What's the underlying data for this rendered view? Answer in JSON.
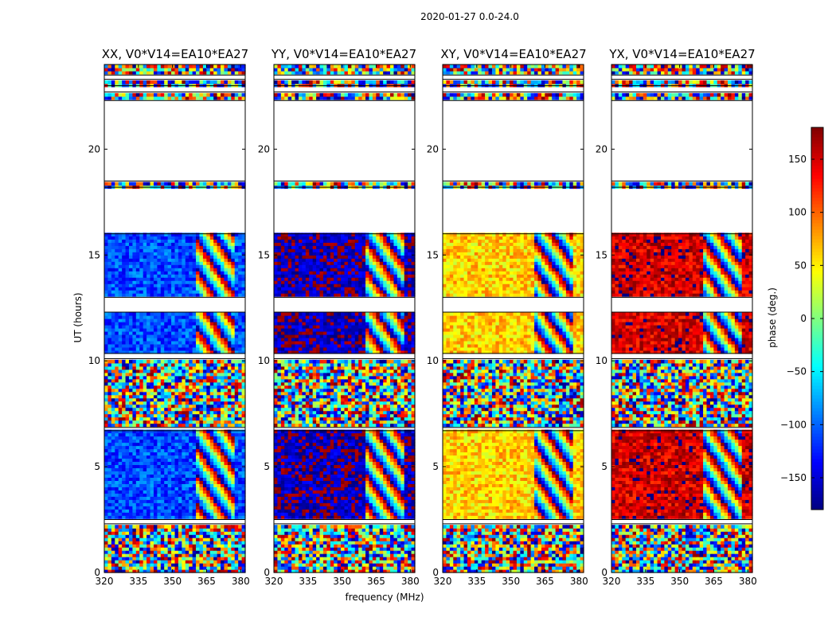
{
  "suptitle": "2020-01-27 0.0-24.0",
  "chart_data": {
    "type": "heatmap",
    "xlabel": "frequency (MHz)",
    "ylabel": "UT (hours)",
    "colorbar": {
      "label": "phase (deg.)",
      "range": [
        -180,
        180
      ],
      "ticks": [
        -150,
        -100,
        -50,
        0,
        50,
        100,
        150
      ],
      "tick_labels": [
        "−150",
        "−100",
        "−50",
        "0",
        "50",
        "100",
        "150"
      ]
    },
    "x_range": [
      320,
      382
    ],
    "x_ticks": [
      320,
      335,
      350,
      365,
      380
    ],
    "y_range": [
      0,
      24
    ],
    "y_ticks": [
      0,
      5,
      10,
      15,
      20
    ],
    "data_gaps_hours": [
      [
        2.3,
        2.5
      ],
      [
        6.7,
        6.85
      ],
      [
        10.1,
        10.35
      ],
      [
        12.3,
        13.0
      ],
      [
        16.0,
        18.2
      ],
      [
        18.5,
        22.3
      ],
      [
        22.7,
        23.0
      ],
      [
        23.3,
        23.5
      ]
    ],
    "panels": [
      {
        "title": "XX, V0*V14=EA10*EA27",
        "mean_phase_low_band": -110
      },
      {
        "title": "YY, V0*V14=EA10*EA27",
        "mean_phase_low_band": -165
      },
      {
        "title": "XY, V0*V14=EA10*EA27",
        "mean_phase_low_band": 60
      },
      {
        "title": "YX, V0*V14=EA10*EA27",
        "mean_phase_low_band": 150
      }
    ]
  }
}
